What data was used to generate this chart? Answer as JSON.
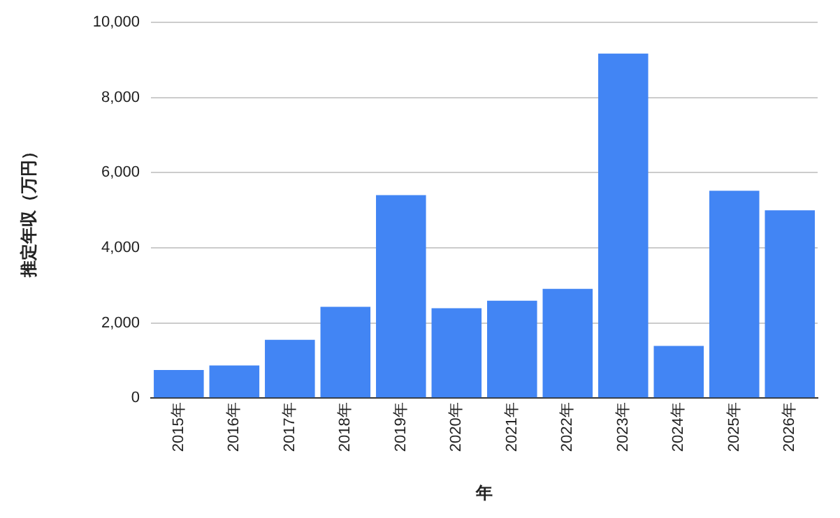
{
  "chart_data": {
    "type": "bar",
    "xlabel": "年",
    "ylabel": "推定年収（万円）",
    "categories": [
      "2015年",
      "2016年",
      "2017年",
      "2018年",
      "2019年",
      "2020年",
      "2021年",
      "2022年",
      "2023年",
      "2024年",
      "2025年",
      "2026年"
    ],
    "values": [
      750,
      870,
      1550,
      2430,
      5400,
      2390,
      2590,
      2910,
      9170,
      1390,
      5520,
      5000
    ],
    "color": "#4285f4",
    "ylim": [
      0,
      10000
    ],
    "yticks": [
      0,
      {
        "value": 2000,
        "label": "2,000"
      },
      {
        "value": 4000,
        "label": "4,000"
      },
      {
        "value": 6000,
        "label": "6,000"
      },
      {
        "value": 8000,
        "label": "8,000"
      },
      {
        "value": 10000,
        "label": "10,000"
      }
    ],
    "grid": "y"
  }
}
